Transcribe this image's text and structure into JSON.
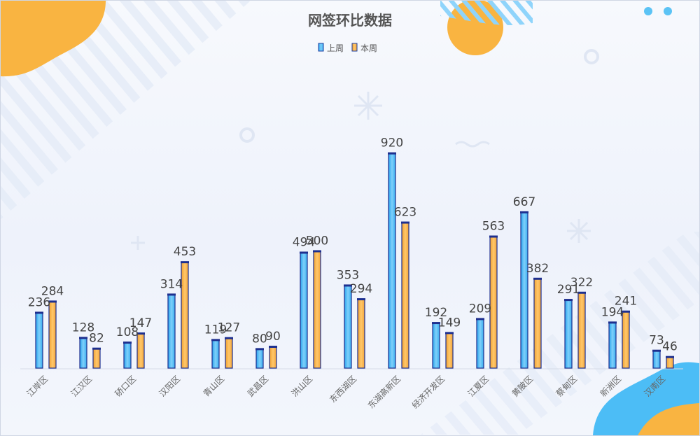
{
  "chart_data": {
    "type": "bar",
    "title": "网签环比数据",
    "categories": [
      "江岸区",
      "江汉区",
      "硚口区",
      "汉阳区",
      "青山区",
      "武昌区",
      "洪山区",
      "东西湖区",
      "东湖高新区",
      "经济开发区",
      "江夏区",
      "黄陂区",
      "蔡甸区",
      "新洲区",
      "汉南区"
    ],
    "series": [
      {
        "name": "上周",
        "values": [
          236,
          128,
          108,
          314,
          119,
          80,
          494,
          353,
          920,
          192,
          209,
          667,
          291,
          194,
          73
        ],
        "color": "#4fb8f0"
      },
      {
        "name": "本周",
        "values": [
          284,
          82,
          147,
          453,
          127,
          90,
          500,
          294,
          623,
          149,
          563,
          382,
          322,
          241,
          46
        ],
        "color": "#f5a623"
      }
    ],
    "ylim": [
      0,
      1000
    ],
    "legend_position": "top-center",
    "grid": false,
    "xlabel": "",
    "ylabel": ""
  }
}
